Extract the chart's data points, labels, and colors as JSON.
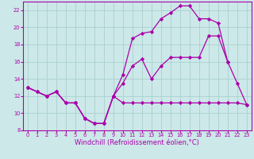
{
  "bg_color": "#cce8e8",
  "grid_color": "#aacfcf",
  "line_color": "#aa00aa",
  "marker": "D",
  "markersize": 2.2,
  "linewidth": 0.9,
  "xlabel": "Windchill (Refroidissement éolien,°C)",
  "xlabel_fontsize": 6.0,
  "ylim": [
    8,
    23
  ],
  "xlim": [
    -0.5,
    23.5
  ],
  "yticks": [
    8,
    10,
    12,
    14,
    16,
    18,
    20,
    22
  ],
  "xticks": [
    0,
    1,
    2,
    3,
    4,
    5,
    6,
    7,
    8,
    9,
    10,
    11,
    12,
    13,
    14,
    15,
    16,
    17,
    18,
    19,
    20,
    21,
    22,
    23
  ],
  "line1_x": [
    0,
    1,
    2,
    3,
    4,
    5,
    6,
    7,
    8,
    9,
    10,
    11,
    12,
    13,
    14,
    15,
    16,
    17,
    18,
    19,
    20,
    21,
    22,
    23
  ],
  "line1_y": [
    13.0,
    12.5,
    12.0,
    12.5,
    11.2,
    11.2,
    9.4,
    8.8,
    8.8,
    12.0,
    11.2,
    11.2,
    11.2,
    11.2,
    11.2,
    11.2,
    11.2,
    11.2,
    11.2,
    11.2,
    11.2,
    11.2,
    11.2,
    11.0
  ],
  "line2_x": [
    0,
    1,
    2,
    3,
    4,
    5,
    6,
    7,
    8,
    9,
    10,
    11,
    12,
    13,
    14,
    15,
    16,
    17,
    18,
    19,
    20,
    21,
    22,
    23
  ],
  "line2_y": [
    13.0,
    12.5,
    12.0,
    12.5,
    11.2,
    11.2,
    9.4,
    8.8,
    8.8,
    12.0,
    13.5,
    15.5,
    16.3,
    14.0,
    15.5,
    16.5,
    16.5,
    16.5,
    16.5,
    19.0,
    19.0,
    16.0,
    null,
    null
  ],
  "line3_x": [
    0,
    1,
    2,
    3,
    4,
    5,
    6,
    7,
    8,
    9,
    10,
    11,
    12,
    13,
    14,
    15,
    16,
    17,
    18,
    19,
    20,
    21,
    22,
    23
  ],
  "line3_y": [
    13.0,
    12.5,
    12.0,
    12.5,
    11.2,
    11.2,
    9.4,
    8.8,
    8.8,
    12.0,
    14.5,
    18.7,
    19.3,
    19.5,
    21.0,
    21.7,
    22.5,
    22.5,
    21.0,
    21.0,
    20.5,
    16.0,
    13.5,
    11.0
  ]
}
